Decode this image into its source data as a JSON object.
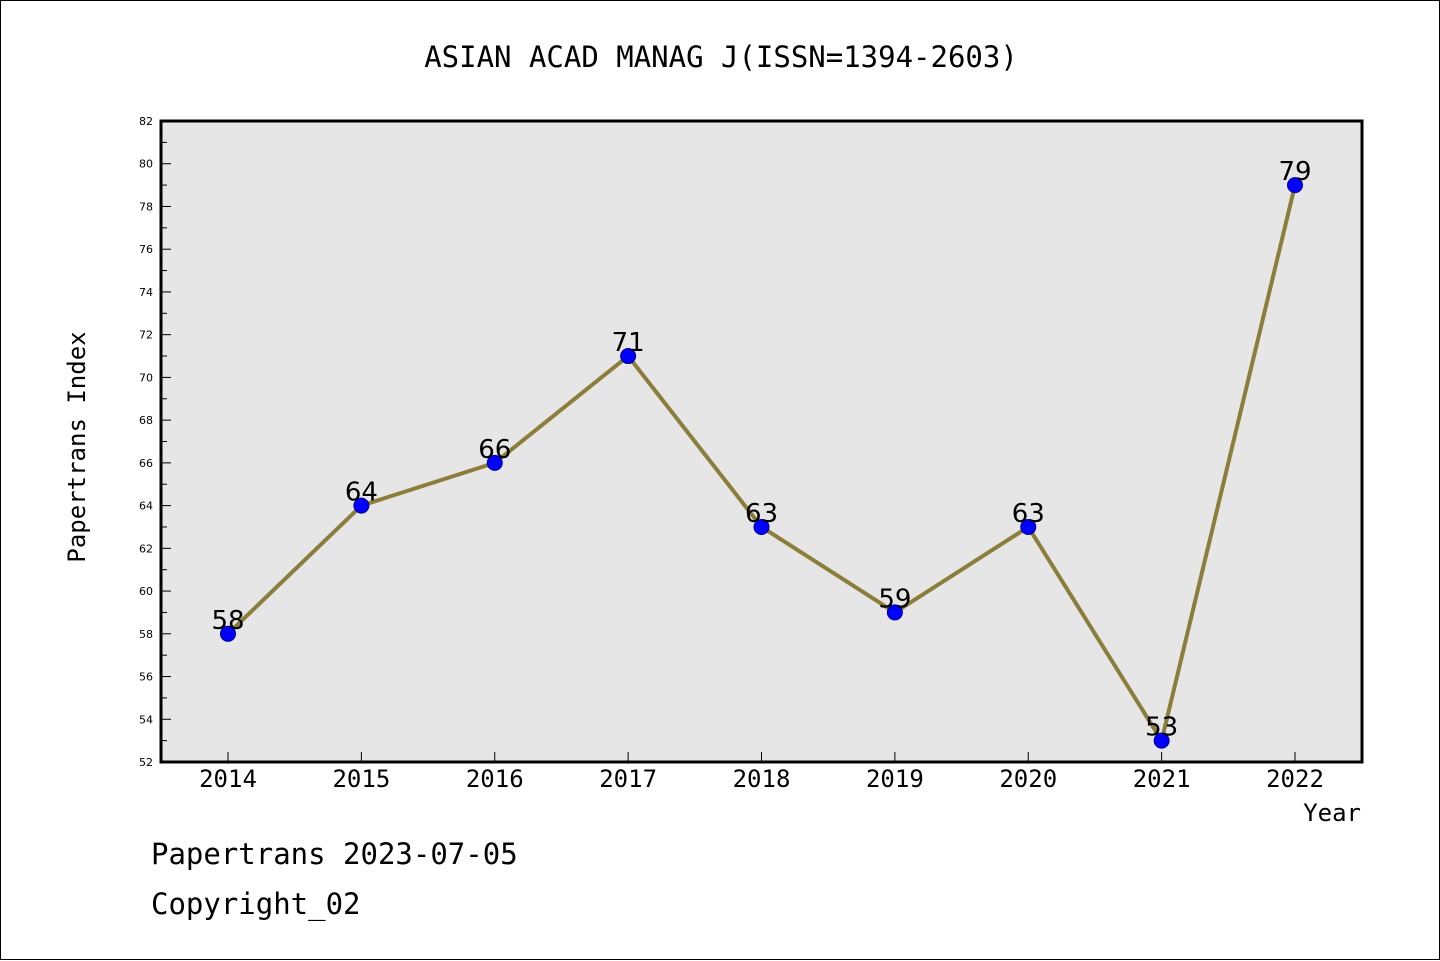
{
  "chart_data": {
    "type": "line",
    "title": "ASIAN ACAD MANAG J(ISSN=1394-2603)",
    "xlabel": "Year",
    "ylabel": "Papertrans Index",
    "categories": [
      "2014",
      "2015",
      "2016",
      "2017",
      "2018",
      "2019",
      "2020",
      "2021",
      "2022"
    ],
    "values": [
      58,
      64,
      66,
      71,
      63,
      59,
      63,
      53,
      79
    ],
    "data_labels": [
      "58",
      "64",
      "66",
      "71",
      "63",
      "59",
      "63",
      "53",
      "79"
    ],
    "ylim": [
      52,
      82
    ],
    "y_ticks": [
      "52",
      "54",
      "56",
      "58",
      "60",
      "62",
      "64",
      "66",
      "68",
      "70",
      "72",
      "74",
      "76",
      "78",
      "80",
      "82"
    ],
    "grid": false,
    "legend": "none",
    "colors": {
      "line": "#8b7d3a",
      "marker": "#0000ff",
      "marker_edge": "#00008b",
      "plot_background": "#e6e6e6",
      "axes": "#000000"
    }
  },
  "footer": {
    "date_line": "Papertrans 2023-07-05",
    "copyright_line": "Copyright_02"
  }
}
